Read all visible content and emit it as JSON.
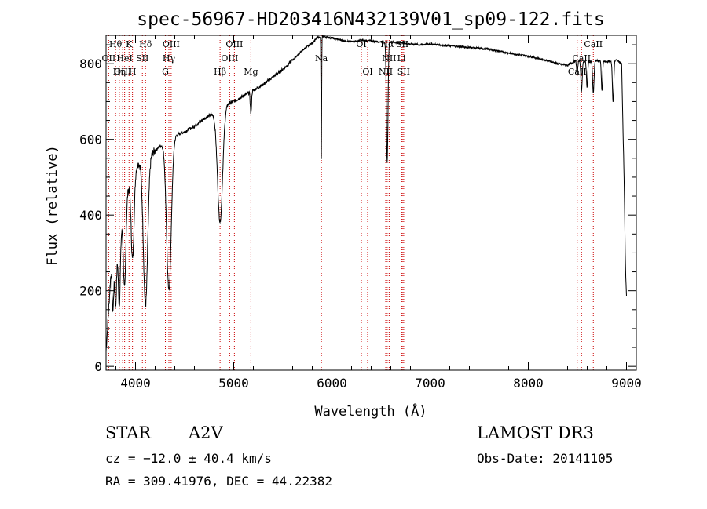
{
  "chart_data": {
    "type": "line",
    "title": "spec-56967-HD203416N432139V01_sp09-122.fits",
    "xlabel": "Wavelength (Å)",
    "ylabel": "Flux (relative)",
    "xlim": [
      3700,
      9100
    ],
    "ylim": [
      -10,
      875
    ],
    "xticks": [
      4000,
      5000,
      6000,
      7000,
      8000,
      9000
    ],
    "xtick_labels": [
      "4000",
      "5000",
      "6000",
      "7000",
      "8000",
      "9000"
    ],
    "yticks": [
      0,
      200,
      400,
      600,
      800
    ],
    "ytick_labels": [
      "0",
      "200",
      "400",
      "600",
      "800"
    ],
    "continuum": [
      [
        3700,
        40
      ],
      [
        3750,
        250
      ],
      [
        3800,
        300
      ],
      [
        3850,
        360
      ],
      [
        3900,
        430
      ],
      [
        3950,
        505
      ],
      [
        4000,
        525
      ],
      [
        4050,
        545
      ],
      [
        4100,
        540
      ],
      [
        4150,
        560
      ],
      [
        4200,
        570
      ],
      [
        4300,
        595
      ],
      [
        4400,
        610
      ],
      [
        4500,
        620
      ],
      [
        4600,
        635
      ],
      [
        4700,
        655
      ],
      [
        4800,
        670
      ],
      [
        4900,
        690
      ],
      [
        5000,
        700
      ],
      [
        5100,
        715
      ],
      [
        5200,
        730
      ],
      [
        5300,
        745
      ],
      [
        5400,
        765
      ],
      [
        5500,
        785
      ],
      [
        5600,
        810
      ],
      [
        5700,
        835
      ],
      [
        5800,
        855
      ],
      [
        5850,
        868
      ],
      [
        5900,
        872
      ],
      [
        6000,
        868
      ],
      [
        6100,
        862
      ],
      [
        6200,
        858
      ],
      [
        6300,
        862
      ],
      [
        6400,
        860
      ],
      [
        6500,
        858
      ],
      [
        6600,
        858
      ],
      [
        6700,
        855
      ],
      [
        6800,
        852
      ],
      [
        6900,
        850
      ],
      [
        7000,
        852
      ],
      [
        7200,
        847
      ],
      [
        7400,
        843
      ],
      [
        7600,
        838
      ],
      [
        7800,
        828
      ],
      [
        8000,
        820
      ],
      [
        8200,
        808
      ],
      [
        8300,
        800
      ],
      [
        8400,
        796
      ],
      [
        8500,
        810
      ],
      [
        8600,
        805
      ],
      [
        8700,
        808
      ],
      [
        8800,
        805
      ],
      [
        8900,
        810
      ],
      [
        8950,
        800
      ],
      [
        9000,
        200
      ]
    ],
    "absorption": [
      {
        "center": 3770,
        "depth": 120,
        "width": 8
      },
      {
        "center": 3798,
        "depth": 140,
        "width": 9
      },
      {
        "center": 3835,
        "depth": 180,
        "width": 10
      },
      {
        "center": 3889,
        "depth": 210,
        "width": 12
      },
      {
        "center": 3970,
        "depth": 230,
        "width": 15
      },
      {
        "center": 4102,
        "depth": 380,
        "width": 22
      },
      {
        "center": 4340,
        "depth": 400,
        "width": 24
      },
      {
        "center": 4861,
        "depth": 300,
        "width": 26
      },
      {
        "center": 5175,
        "depth": 60,
        "width": 6
      },
      {
        "center": 5892,
        "depth": 330,
        "width": 3
      },
      {
        "center": 6563,
        "depth": 320,
        "width": 8
      },
      {
        "center": 8498,
        "depth": 40,
        "width": 6
      },
      {
        "center": 8542,
        "depth": 80,
        "width": 7
      },
      {
        "center": 8598,
        "depth": 70,
        "width": 6
      },
      {
        "center": 8662,
        "depth": 85,
        "width": 7
      },
      {
        "center": 8750,
        "depth": 80,
        "width": 6
      },
      {
        "center": 8863,
        "depth": 110,
        "width": 7
      },
      {
        "center": 8990,
        "depth": 60,
        "width": 6
      }
    ],
    "line_markers": [
      {
        "label": "Hθ",
        "wave": 3797,
        "row": 0
      },
      {
        "label": "K",
        "wave": 3934,
        "row": 0
      },
      {
        "label": "Hδ",
        "wave": 4102,
        "row": 0
      },
      {
        "label": "OIII",
        "wave": 4363,
        "row": 0
      },
      {
        "label": "OIII",
        "wave": 5007,
        "row": 0
      },
      {
        "label": "OI",
        "wave": 6300,
        "row": 0
      },
      {
        "label": "Hα",
        "wave": 6563,
        "row": 0
      },
      {
        "label": "SII",
        "wave": 6717,
        "row": 0
      },
      {
        "label": "CaII",
        "wave": 8662,
        "row": 0
      },
      {
        "label": "OII",
        "wave": 3727,
        "row": 1
      },
      {
        "label": "HeI",
        "wave": 3889,
        "row": 1
      },
      {
        "label": "SII",
        "wave": 4070,
        "row": 1
      },
      {
        "label": "Hγ",
        "wave": 4340,
        "row": 1
      },
      {
        "label": "OIII",
        "wave": 4959,
        "row": 1
      },
      {
        "label": "Na",
        "wave": 5893,
        "row": 1
      },
      {
        "label": "NII",
        "wave": 6583,
        "row": 1
      },
      {
        "label": "Li",
        "wave": 6708,
        "row": 1
      },
      {
        "label": "CaII",
        "wave": 8542,
        "row": 1
      },
      {
        "label": "OIII",
        "wave": 3869,
        "row": 2
      },
      {
        "label": "Hη",
        "wave": 3835,
        "row": 2
      },
      {
        "label": "H",
        "wave": 3969,
        "row": 2
      },
      {
        "label": "G",
        "wave": 4304,
        "row": 2
      },
      {
        "label": "Hβ",
        "wave": 4861,
        "row": 2
      },
      {
        "label": "Mg",
        "wave": 5175,
        "row": 2
      },
      {
        "label": "OI",
        "wave": 6364,
        "row": 2
      },
      {
        "label": "NII",
        "wave": 6548,
        "row": 2
      },
      {
        "label": "SII",
        "wave": 6731,
        "row": 2
      },
      {
        "label": "CaII",
        "wave": 8498,
        "row": 2
      }
    ],
    "grid": false,
    "line_color": "#000000",
    "marker_color": "#cc0000"
  },
  "footer": {
    "object_class": "STAR",
    "subclass": "A2V",
    "survey": "LAMOST DR3",
    "redshift": "cz = −12.0 ± 40.4 km/s",
    "obs_date": "Obs-Date: 20141105",
    "coords": "RA = 309.41976, DEC =  44.22382"
  }
}
